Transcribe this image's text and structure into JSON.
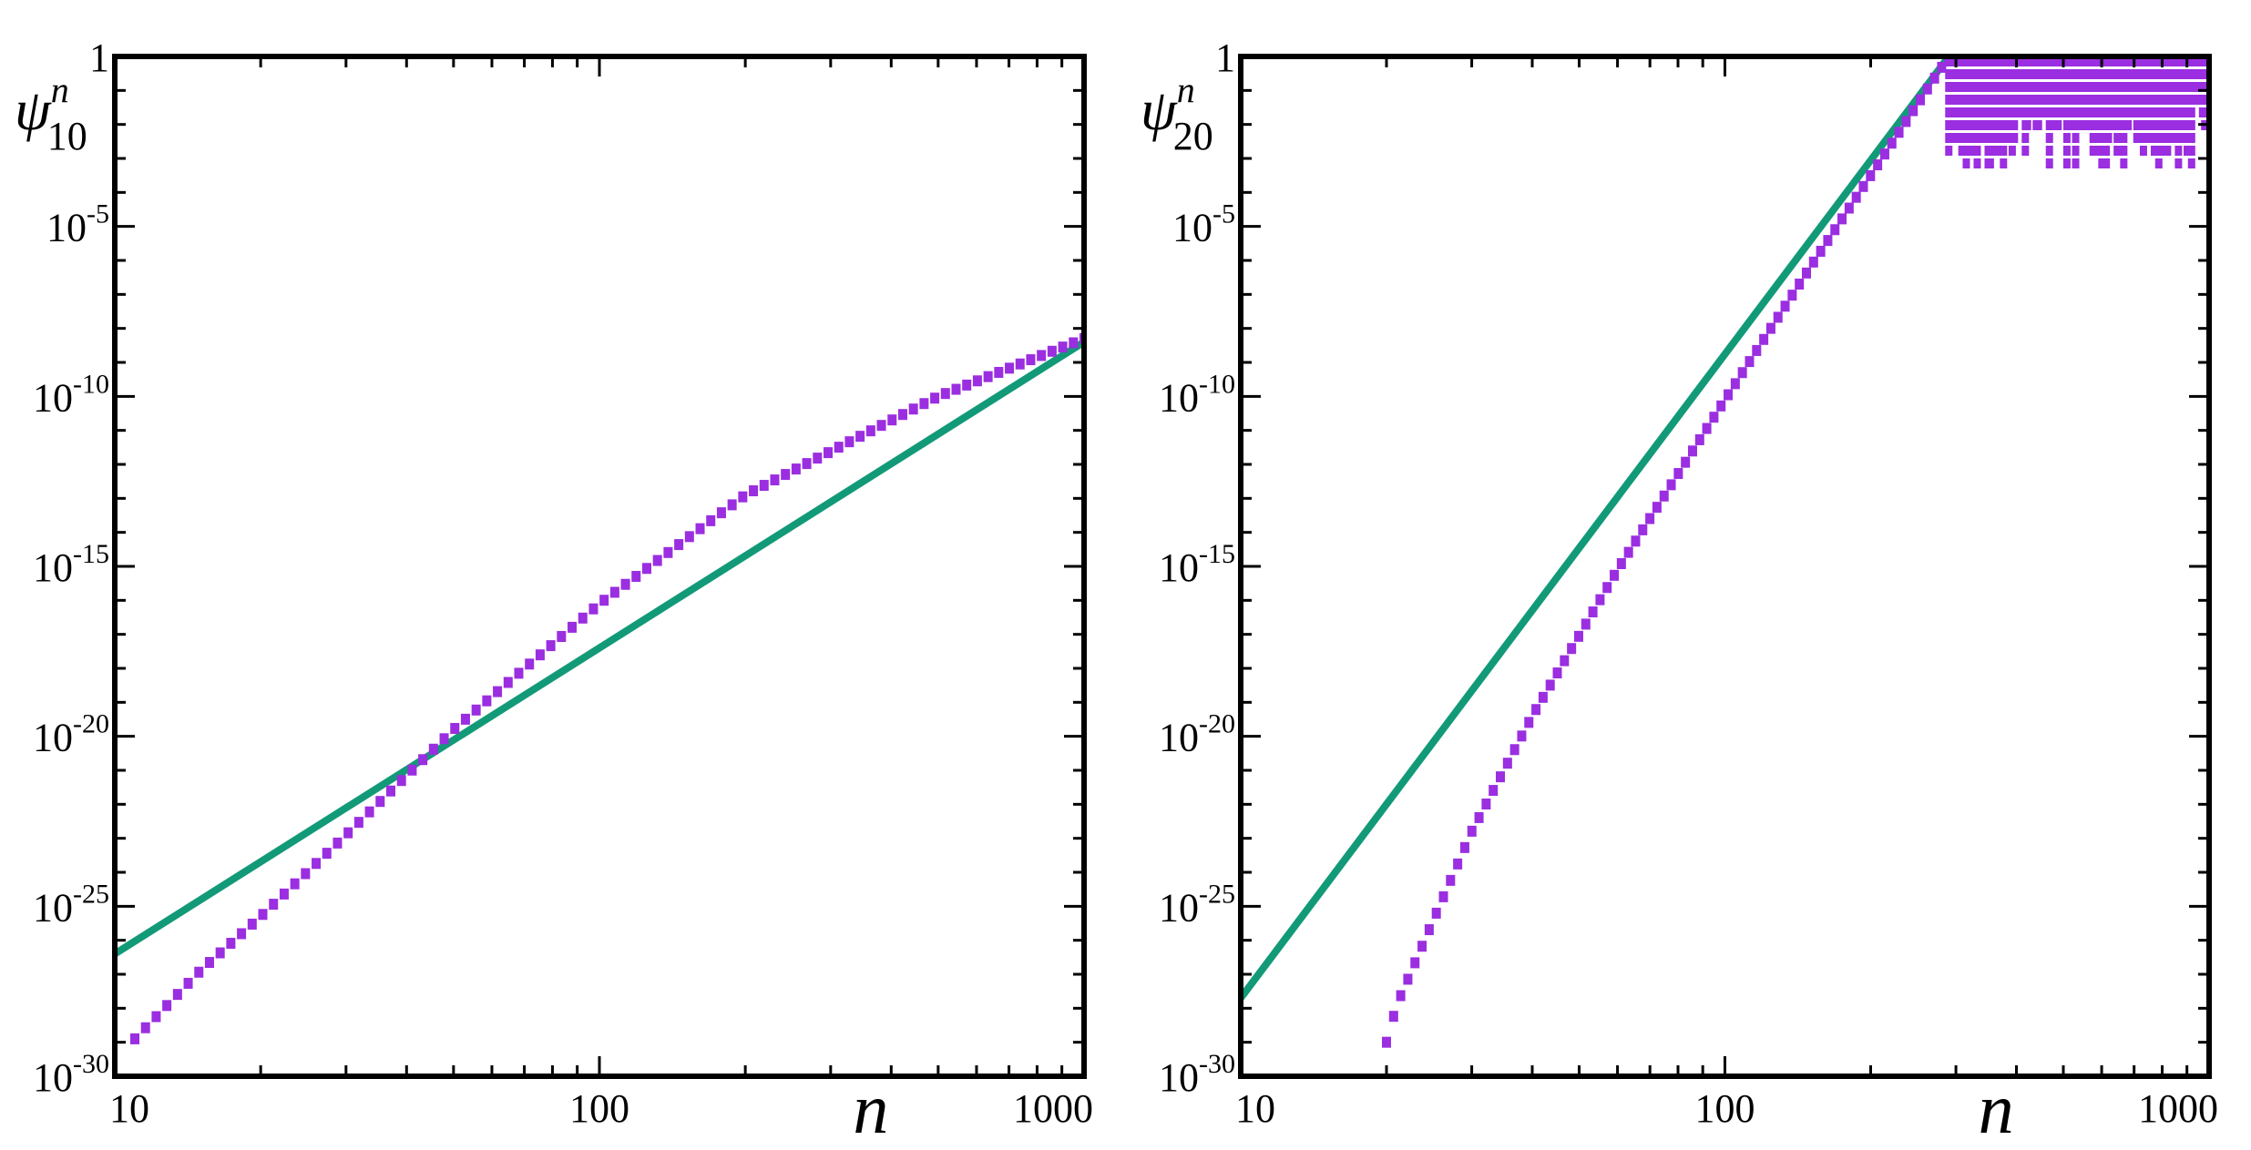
{
  "chart_data": [
    {
      "type": "scatter",
      "ylabel": {
        "symbol": "ψ",
        "subscript": "10",
        "superscript": "n"
      },
      "xlabel": "n",
      "xscale": "log",
      "yscale": "log",
      "xlim": [
        10,
        1000
      ],
      "ylim": [
        1e-30,
        1
      ],
      "grid": false,
      "xticks": [
        {
          "value": 10,
          "label": "10"
        },
        {
          "value": 100,
          "label": "100"
        },
        {
          "value": 1000,
          "label": "1000"
        }
      ],
      "yticks": [
        {
          "value": 1,
          "label": "1",
          "mantissa": "1",
          "exponent": ""
        },
        {
          "value": 1e-05,
          "label": "10-5",
          "mantissa": "10",
          "exponent": "-5"
        },
        {
          "value": 1e-10,
          "label": "10-10",
          "mantissa": "10",
          "exponent": "-10"
        },
        {
          "value": 1e-15,
          "label": "10-15",
          "mantissa": "10",
          "exponent": "-15"
        },
        {
          "value": 1e-20,
          "label": "10-20",
          "mantissa": "10",
          "exponent": "-20"
        },
        {
          "value": 1e-25,
          "label": "10-25",
          "mantissa": "10",
          "exponent": "-25"
        },
        {
          "value": 1e-30,
          "label": "10-30",
          "mantissa": "10",
          "exponent": "-30"
        }
      ],
      "series": [
        {
          "kind": "line",
          "color": "#129a78",
          "x": [
            10,
            1000
          ],
          "log10_y": [
            -26.4,
            -8.4
          ]
        },
        {
          "kind": "points",
          "color": "#9a2ee0",
          "x_start": 11,
          "x_end": 1000,
          "count": 90,
          "log10_y_points": [
            [
              11,
              -28.9
            ],
            [
              15,
              -26.9
            ],
            [
              20,
              -25.3
            ],
            [
              30,
              -22.9
            ],
            [
              50,
              -19.8
            ],
            [
              100,
              -16.1
            ],
            [
              200,
              -12.9
            ],
            [
              500,
              -10.0
            ],
            [
              1000,
              -8.3
            ]
          ]
        }
      ]
    },
    {
      "type": "scatter",
      "ylabel": {
        "symbol": "ψ",
        "subscript": "20",
        "superscript": "n"
      },
      "xlabel": "n",
      "xscale": "log",
      "yscale": "log",
      "xlim": [
        10,
        1000
      ],
      "ylim": [
        1e-30,
        1
      ],
      "grid": false,
      "xticks": [
        {
          "value": 10,
          "label": "10"
        },
        {
          "value": 100,
          "label": "100"
        },
        {
          "value": 1000,
          "label": "1000"
        }
      ],
      "yticks": [
        {
          "value": 1,
          "label": "1",
          "mantissa": "1",
          "exponent": ""
        },
        {
          "value": 1e-05,
          "label": "10-5",
          "mantissa": "10",
          "exponent": "-5"
        },
        {
          "value": 1e-10,
          "label": "10-10",
          "mantissa": "10",
          "exponent": "-10"
        },
        {
          "value": 1e-15,
          "label": "10-15",
          "mantissa": "10",
          "exponent": "-15"
        },
        {
          "value": 1e-20,
          "label": "10-20",
          "mantissa": "10",
          "exponent": "-20"
        },
        {
          "value": 1e-25,
          "label": "10-25",
          "mantissa": "10",
          "exponent": "-25"
        },
        {
          "value": 1e-30,
          "label": "10-30",
          "mantissa": "10",
          "exponent": "-30"
        }
      ],
      "series": [
        {
          "kind": "line",
          "color": "#129a78",
          "x": [
            10,
            290
          ],
          "log10_y": [
            -27.7,
            0
          ]
        },
        {
          "kind": "points",
          "color": "#9a2ee0",
          "x_start": 20,
          "x_end": 290,
          "count": 80,
          "log10_y_points": [
            [
              20,
              -29.0
            ],
            [
              21,
              -27.9
            ],
            [
              23,
              -26.6
            ],
            [
              25,
              -25.4
            ],
            [
              30,
              -22.8
            ],
            [
              40,
              -19.4
            ],
            [
              60,
              -15.1
            ],
            [
              100,
              -10.1
            ],
            [
              150,
              -6.2
            ],
            [
              200,
              -3.5
            ],
            [
              290,
              0
            ]
          ]
        },
        {
          "kind": "points",
          "color": "#9a2ee0",
          "x_start": 290,
          "x_end": 1000,
          "count": 120,
          "log10_y_band": {
            "top": 0,
            "bottom_range": [
              -3.2,
              -1.0
            ]
          }
        }
      ]
    }
  ]
}
